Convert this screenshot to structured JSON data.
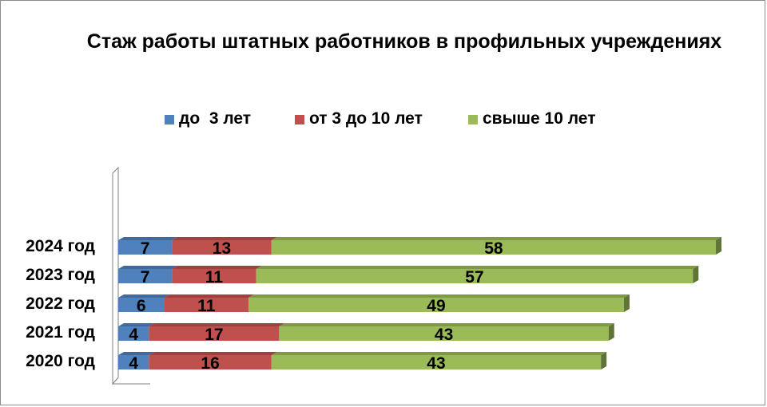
{
  "chart_data": {
    "type": "bar",
    "orientation": "horizontal",
    "stacked": true,
    "style": "3d",
    "title": "Стаж работы штатных работников в профильных учреждениях",
    "categories": [
      "2024 год",
      "2023 год",
      "2022 год",
      "2021 год",
      "2020 год"
    ],
    "series": [
      {
        "name": "до  3 лет",
        "color": "#4f81bd",
        "values": [
          7,
          7,
          6,
          4,
          4
        ]
      },
      {
        "name": "от 3 до 10 лет",
        "color": "#c0504d",
        "values": [
          13,
          11,
          11,
          17,
          16
        ]
      },
      {
        "name": "свыше 10 лет",
        "color": "#9bbb59",
        "values": [
          58,
          57,
          49,
          43,
          43
        ]
      }
    ],
    "data_labels": true,
    "legend_position": "top",
    "grid": false,
    "xlim": [
      0,
      80
    ]
  }
}
